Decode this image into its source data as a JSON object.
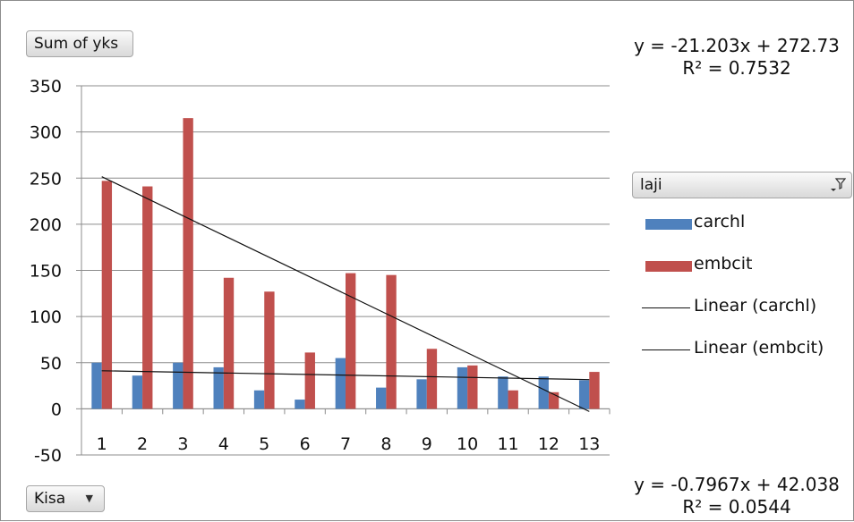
{
  "buttons": {
    "values_field": "Sum of yks",
    "axis_field": "Kisa",
    "legend_field": "laji"
  },
  "trend_equations": {
    "top": {
      "equation": "y = -21.203x + 272.73",
      "r2": "R² = 0.7532"
    },
    "bottom": {
      "equation": "y = -0.7967x + 42.038",
      "r2": "R² = 0.0544"
    }
  },
  "chart_data": {
    "type": "bar",
    "title": "",
    "xlabel": "",
    "ylabel": "",
    "ylim": [
      -50,
      350
    ],
    "y_ticks": [
      350,
      300,
      250,
      200,
      150,
      100,
      50,
      0,
      -50
    ],
    "grid": true,
    "legend_position": "right",
    "categories": [
      "1",
      "2",
      "3",
      "4",
      "5",
      "6",
      "7",
      "8",
      "9",
      "10",
      "11",
      "12",
      "13"
    ],
    "series": [
      {
        "name": "carchl",
        "color": "#4f81bd",
        "values": [
          50,
          36,
          50,
          45,
          20,
          10,
          55,
          23,
          32,
          45,
          35,
          35,
          31
        ]
      },
      {
        "name": "embcit",
        "color": "#c0504d",
        "values": [
          247,
          241,
          315,
          142,
          127,
          61,
          147,
          145,
          65,
          47,
          20,
          18,
          40
        ]
      }
    ],
    "trendlines": [
      {
        "name": "Linear (carchl)",
        "type": "linear",
        "slope": -0.7967,
        "intercept": 42.038,
        "color": "#111111"
      },
      {
        "name": "Linear (embcit)",
        "type": "linear",
        "slope": -21.203,
        "intercept": 272.73,
        "color": "#111111"
      }
    ]
  }
}
